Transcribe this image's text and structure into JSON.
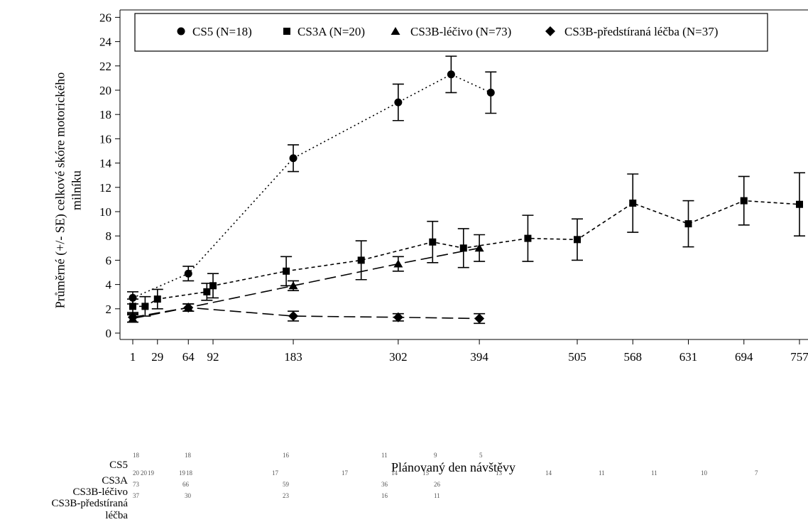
{
  "chart_data": {
    "type": "line",
    "ylabel_line1": "Průměrné (+/- SE) celkové skóre motorického",
    "ylabel_line2": "milníku",
    "xlabel": "Plánovaný den návštěvy",
    "ylim": [
      0,
      26
    ],
    "yticks": [
      0,
      2,
      4,
      6,
      8,
      10,
      12,
      14,
      16,
      18,
      20,
      22,
      24,
      26
    ],
    "xticks": [
      1,
      29,
      64,
      92,
      183,
      302,
      394,
      505,
      568,
      631,
      694,
      757
    ],
    "legend_position": "top",
    "series": [
      {
        "name": "CS5 (N=18)",
        "marker": "circle",
        "linestyle": "dotted",
        "x": [
          1,
          64,
          183,
          302,
          362,
          407
        ],
        "y": [
          2.9,
          4.9,
          14.4,
          19.0,
          21.3,
          19.8
        ],
        "se": [
          0.5,
          0.6,
          1.1,
          1.5,
          1.5,
          1.7
        ]
      },
      {
        "name": "CS3A (N=20)",
        "marker": "square",
        "linestyle": "short-dash",
        "x": [
          1,
          15,
          29,
          85,
          92,
          175,
          260,
          341,
          376,
          449,
          505,
          568,
          631,
          694,
          757
        ],
        "y": [
          2.2,
          2.2,
          2.8,
          3.4,
          3.9,
          5.1,
          6.0,
          7.5,
          7.0,
          7.8,
          7.7,
          10.7,
          9.0,
          10.9,
          10.6
        ],
        "se": [
          0.6,
          0.8,
          0.8,
          0.7,
          1.0,
          1.2,
          1.6,
          1.7,
          1.6,
          1.9,
          1.7,
          2.4,
          1.9,
          2.0,
          2.6
        ]
      },
      {
        "name": "CS3B-léčivo (N=73)",
        "marker": "triangle",
        "linestyle": "long-dash",
        "x": [
          1,
          64,
          183,
          302,
          394
        ],
        "y": [
          1.2,
          2.1,
          3.9,
          5.7,
          7.0
        ],
        "se": [
          0.3,
          0.3,
          0.4,
          0.6,
          1.1
        ]
      },
      {
        "name": "CS3B-předstíraná léčba (N=37)",
        "marker": "diamond",
        "linestyle": "long-dash",
        "x": [
          1,
          64,
          183,
          302,
          394
        ],
        "y": [
          1.3,
          2.1,
          1.4,
          1.3,
          1.2
        ],
        "se": [
          0.4,
          0.3,
          0.4,
          0.3,
          0.4
        ]
      }
    ],
    "risk_table": [
      {
        "label": "CS5",
        "numbers": [
          "18",
          "18",
          "16",
          "11",
          "9",
          "5"
        ]
      },
      {
        "label": "CS3A",
        "numbers": [
          "20",
          "20",
          "19",
          "19",
          "18",
          "17",
          "17",
          "14",
          "15",
          "13",
          "14",
          "11",
          "11",
          "10",
          "7"
        ]
      },
      {
        "label": "CS3B-léčivo",
        "numbers": [
          "73",
          "66",
          "59",
          "36",
          "26"
        ]
      },
      {
        "label_line1": "CS3B-předstíraná",
        "label_line2": "léčba",
        "numbers": [
          "37",
          "30",
          "23",
          "16",
          "11"
        ]
      }
    ],
    "colors": {
      "line": "#000000",
      "axis": "#000000",
      "frame": "#000000"
    }
  }
}
